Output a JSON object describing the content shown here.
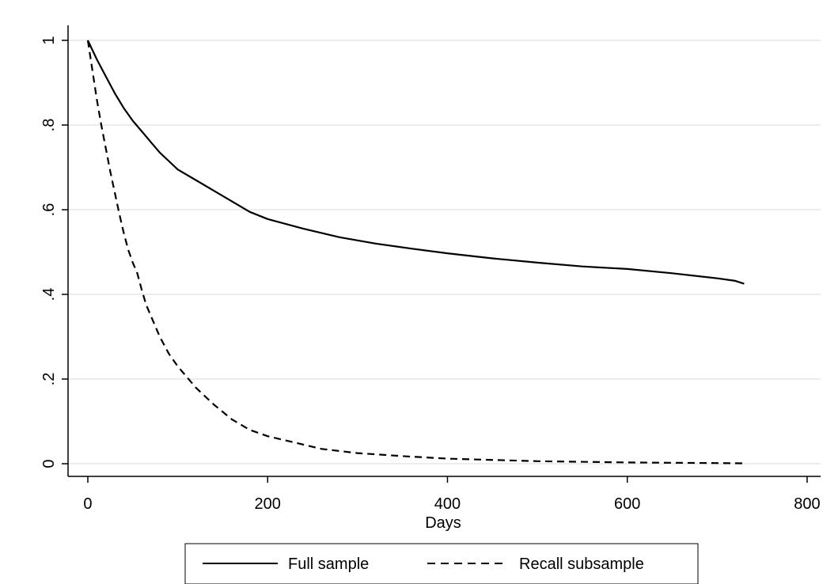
{
  "chart_data": {
    "type": "line",
    "title": "",
    "xlabel": "Days",
    "ylabel": "",
    "xlim": [
      0,
      800
    ],
    "ylim": [
      0,
      1
    ],
    "grid": "horizontal",
    "legend_position": "bottom",
    "x_ticks": [
      {
        "value": 0,
        "label": "0"
      },
      {
        "value": 200,
        "label": "200"
      },
      {
        "value": 400,
        "label": "400"
      },
      {
        "value": 600,
        "label": "600"
      },
      {
        "value": 800,
        "label": "800"
      }
    ],
    "y_ticks": [
      {
        "value": 0,
        "label": "0"
      },
      {
        "value": 0.2,
        "label": ".2"
      },
      {
        "value": 0.4,
        "label": ".4"
      },
      {
        "value": 0.6,
        "label": ".6"
      },
      {
        "value": 0.8,
        "label": ".8"
      },
      {
        "value": 1,
        "label": "1"
      }
    ],
    "series": [
      {
        "name": "Full sample",
        "style": "solid",
        "color": "#000000",
        "points": [
          [
            0,
            1.0
          ],
          [
            10,
            0.955
          ],
          [
            20,
            0.915
          ],
          [
            30,
            0.875
          ],
          [
            40,
            0.84
          ],
          [
            50,
            0.81
          ],
          [
            60,
            0.785
          ],
          [
            70,
            0.76
          ],
          [
            80,
            0.735
          ],
          [
            90,
            0.715
          ],
          [
            100,
            0.695
          ],
          [
            120,
            0.67
          ],
          [
            140,
            0.645
          ],
          [
            160,
            0.62
          ],
          [
            180,
            0.595
          ],
          [
            200,
            0.578
          ],
          [
            240,
            0.555
          ],
          [
            280,
            0.535
          ],
          [
            320,
            0.52
          ],
          [
            360,
            0.508
          ],
          [
            400,
            0.497
          ],
          [
            450,
            0.485
          ],
          [
            500,
            0.475
          ],
          [
            550,
            0.466
          ],
          [
            600,
            0.46
          ],
          [
            650,
            0.45
          ],
          [
            700,
            0.438
          ],
          [
            720,
            0.432
          ],
          [
            730,
            0.425
          ]
        ]
      },
      {
        "name": "Recall subsample",
        "style": "dashed",
        "color": "#000000",
        "points": [
          [
            0,
            1.0
          ],
          [
            5,
            0.93
          ],
          [
            10,
            0.86
          ],
          [
            15,
            0.8
          ],
          [
            20,
            0.745
          ],
          [
            25,
            0.69
          ],
          [
            30,
            0.64
          ],
          [
            35,
            0.59
          ],
          [
            40,
            0.545
          ],
          [
            45,
            0.505
          ],
          [
            50,
            0.475
          ],
          [
            55,
            0.45
          ],
          [
            60,
            0.41
          ],
          [
            65,
            0.375
          ],
          [
            70,
            0.35
          ],
          [
            80,
            0.3
          ],
          [
            90,
            0.26
          ],
          [
            100,
            0.23
          ],
          [
            110,
            0.205
          ],
          [
            120,
            0.18
          ],
          [
            140,
            0.14
          ],
          [
            160,
            0.105
          ],
          [
            180,
            0.08
          ],
          [
            200,
            0.065
          ],
          [
            220,
            0.055
          ],
          [
            260,
            0.035
          ],
          [
            300,
            0.025
          ],
          [
            350,
            0.018
          ],
          [
            400,
            0.012
          ],
          [
            500,
            0.006
          ],
          [
            600,
            0.003
          ],
          [
            700,
            0.0015
          ],
          [
            730,
            0.001
          ]
        ]
      }
    ]
  }
}
